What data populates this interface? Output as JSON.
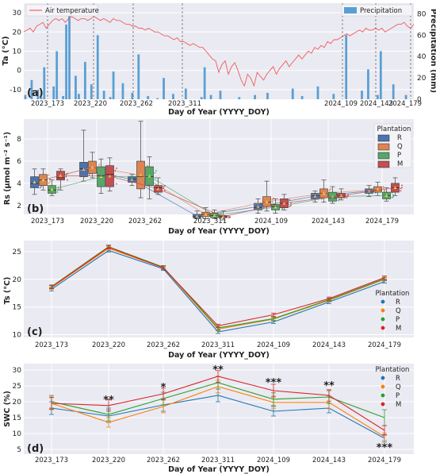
{
  "chart_data": [
    {
      "panel_label": "(a)",
      "type": "line+bar",
      "xlabel": "Day of Year (YYYY_DOY)",
      "ylabel_left": "Ta (°C)",
      "ylabel_right": "Precipitation (mm)",
      "ylim_left": [
        -15,
        35
      ],
      "ylim_right": [
        0,
        90
      ],
      "yticks_left": [
        -10,
        0,
        10,
        20,
        30
      ],
      "yticks_right": [
        0,
        20,
        40,
        60,
        80
      ],
      "grid": true,
      "legend": [
        "top-left: Air temperature",
        "top-right: Precipitation"
      ],
      "series": [
        {
          "name": "Air temperature",
          "color": "#f25c5c",
          "type": "line",
          "values": [
            20,
            21,
            22,
            20,
            23,
            24,
            25,
            22,
            24,
            26,
            27,
            26,
            27,
            25,
            27,
            28,
            27,
            26,
            27,
            27,
            26,
            27,
            28,
            27,
            26,
            27,
            26,
            25,
            27,
            26,
            26,
            25,
            24,
            24,
            23,
            23,
            22,
            22,
            21,
            22,
            21,
            20,
            20,
            19,
            18,
            18,
            17,
            16,
            17,
            15,
            15,
            14,
            13,
            14,
            13,
            12,
            12,
            10,
            8,
            6,
            5,
            -1,
            3,
            5,
            -2,
            2,
            4,
            0,
            -5,
            -8,
            -2,
            -4,
            -8,
            -1,
            -3,
            -5,
            -2,
            0,
            2,
            -2,
            1,
            3,
            5,
            2,
            4,
            6,
            8,
            6,
            8,
            10,
            9,
            12,
            11,
            13,
            12,
            15,
            14,
            16,
            16,
            17,
            18,
            19,
            18,
            19,
            20,
            21,
            20,
            22,
            21,
            21,
            22,
            21,
            22,
            20,
            21,
            22,
            23,
            24,
            24,
            25,
            23,
            22,
            24
          ]
        },
        {
          "name": "Precipitation",
          "color": "#5a9fd4",
          "type": "bar",
          "values": [
            4,
            0,
            18,
            0,
            9,
            2,
            30,
            0,
            0,
            12,
            45,
            0,
            3,
            70,
            88,
            0,
            22,
            5,
            0,
            35,
            0,
            14,
            0,
            60,
            0,
            8,
            0,
            2,
            26,
            0,
            0,
            15,
            0,
            0,
            6,
            0,
            42,
            0,
            0,
            3,
            0,
            0,
            1,
            0,
            20,
            0,
            0,
            5,
            0,
            0,
            0,
            10,
            0,
            0,
            0,
            0,
            2,
            30,
            0,
            4,
            0,
            0,
            8,
            0,
            0,
            0,
            0,
            0,
            2,
            0,
            0,
            0,
            0,
            4,
            0,
            0,
            0,
            6,
            0,
            0,
            0,
            0,
            0,
            0,
            0,
            10,
            0,
            0,
            3,
            0,
            0,
            0,
            0,
            12,
            0,
            0,
            0,
            0,
            5,
            0,
            0,
            0,
            60,
            0,
            0,
            0,
            0,
            8,
            0,
            28,
            0,
            0,
            4,
            45,
            0,
            0,
            0,
            14,
            0,
            0,
            0,
            4,
            0,
            0
          ]
        }
      ],
      "vlines": [
        "2023_173",
        "2023_220",
        "2023_262",
        "2023_311",
        "2024_109",
        "2024_143",
        "2024_179"
      ]
    },
    {
      "panel_label": "(b)",
      "type": "boxplot",
      "xlabel": "Day of Year (YYYY_DOY)",
      "ylabel": "Rs (μmol m⁻² s⁻¹)",
      "ylim": [
        1.2,
        9.8
      ],
      "yticks": [
        2,
        4,
        6,
        8
      ],
      "categories": [
        "2023_173",
        "2023_220",
        "2023_262",
        "2023_311",
        "2024_109",
        "2024_143",
        "2024_179"
      ],
      "legend_title": "Plantation",
      "legend": [
        "R",
        "Q",
        "P",
        "M"
      ],
      "series": [
        {
          "name": "R",
          "color": "#4c72b0",
          "boxes": [
            [
              3.0,
              3.6,
              4.0,
              4.6,
              5.3
            ],
            [
              4.2,
              4.6,
              5.3,
              5.9,
              8.8
            ],
            [
              3.8,
              4.1,
              4.4,
              4.6,
              4.8
            ],
            [
              0.8,
              0.9,
              1.0,
              1.2,
              1.5
            ],
            [
              1.3,
              1.6,
              1.8,
              2.2,
              2.6
            ],
            [
              2.3,
              2.6,
              2.9,
              3.1,
              3.3
            ],
            [
              2.8,
              3.1,
              3.3,
              3.5,
              3.8
            ]
          ]
        },
        {
          "name": "Q",
          "color": "#dd8452",
          "boxes": [
            [
              3.4,
              3.8,
              4.3,
              4.8,
              5.3
            ],
            [
              4.5,
              4.9,
              5.4,
              6.0,
              6.8
            ],
            [
              2.7,
              3.5,
              4.6,
              6.0,
              9.6
            ],
            [
              0.8,
              1.0,
              1.2,
              1.4,
              1.8
            ],
            [
              1.5,
              1.9,
              2.3,
              2.8,
              4.2
            ],
            [
              2.3,
              2.7,
              3.1,
              3.5,
              4.3
            ],
            [
              2.9,
              3.2,
              3.4,
              3.7,
              4.1
            ]
          ]
        },
        {
          "name": "P",
          "color": "#55a868",
          "boxes": [
            [
              2.9,
              3.1,
              3.4,
              3.8,
              4.3
            ],
            [
              3.1,
              3.7,
              4.7,
              5.5,
              6.2
            ],
            [
              2.6,
              3.8,
              4.6,
              5.5,
              6.4
            ],
            [
              0.8,
              0.9,
              1.1,
              1.3,
              1.6
            ],
            [
              1.3,
              1.6,
              1.9,
              2.1,
              2.6
            ],
            [
              2.2,
              2.4,
              2.7,
              3.2,
              3.7
            ],
            [
              2.4,
              2.6,
              2.9,
              3.2,
              3.6
            ]
          ]
        },
        {
          "name": "M",
          "color": "#c44e52",
          "boxes": [
            [
              3.4,
              4.3,
              4.5,
              5.1,
              5.3
            ],
            [
              3.3,
              3.7,
              4.8,
              5.6,
              6.3
            ],
            [
              3.0,
              3.2,
              3.6,
              3.8,
              4.5
            ],
            [
              0.7,
              0.9,
              1.0,
              1.1,
              1.5
            ],
            [
              1.6,
              1.8,
              2.2,
              2.6,
              3.0
            ],
            [
              2.5,
              2.7,
              2.9,
              3.1,
              3.5
            ],
            [
              2.9,
              3.2,
              3.6,
              4.0,
              4.5
            ]
          ]
        }
      ]
    },
    {
      "panel_label": "(c)",
      "type": "line",
      "xlabel": "Day of Year (YYYY_DOY)",
      "ylabel": "Ts (°C)",
      "ylim": [
        9.5,
        27
      ],
      "yticks": [
        10,
        15,
        20,
        25
      ],
      "categories": [
        "2023_173",
        "2023_220",
        "2023_262",
        "2023_311",
        "2024_109",
        "2024_143",
        "2024_179"
      ],
      "legend_title": "Plantation",
      "legend": [
        "R",
        "Q",
        "P",
        "M"
      ],
      "series": [
        {
          "name": "R",
          "color": "#1f77b4",
          "values": [
            18.2,
            25.2,
            21.9,
            10.5,
            12.3,
            15.9,
            19.6
          ],
          "err": [
            0.3,
            0.3,
            0.3,
            0.3,
            0.3,
            0.3,
            0.3
          ]
        },
        {
          "name": "Q",
          "color": "#ff7f0e",
          "values": [
            18.5,
            25.6,
            22.1,
            11.0,
            12.8,
            16.2,
            20.0
          ],
          "err": [
            0.3,
            0.3,
            0.3,
            0.3,
            0.3,
            0.3,
            0.3
          ]
        },
        {
          "name": "P",
          "color": "#2ca02c",
          "values": [
            18.7,
            25.9,
            22.2,
            11.2,
            12.9,
            16.3,
            20.1
          ],
          "err": [
            0.3,
            0.3,
            0.3,
            0.3,
            0.3,
            0.3,
            0.3
          ]
        },
        {
          "name": "M",
          "color": "#d62728",
          "values": [
            18.6,
            25.8,
            22.1,
            11.6,
            13.6,
            16.5,
            20.3
          ],
          "err": [
            0.3,
            0.3,
            0.3,
            0.3,
            0.3,
            0.3,
            0.3
          ]
        }
      ]
    },
    {
      "panel_label": "(d)",
      "type": "line",
      "xlabel": "Day of Year (YYYY_DOY)",
      "ylabel": "SWC (%)",
      "ylim": [
        3.5,
        32
      ],
      "yticks": [
        5,
        10,
        15,
        20,
        25,
        30
      ],
      "categories": [
        "2023_173",
        "2023_220",
        "2023_262",
        "2023_311",
        "2024_109",
        "2024_143",
        "2024_179"
      ],
      "legend_title": "Plantation",
      "legend": [
        "R",
        "Q",
        "P",
        "M"
      ],
      "annotations": [
        {
          "category": "2023_220",
          "text": "**",
          "y": 20.5
        },
        {
          "category": "2023_262",
          "text": "*",
          "y": 24.5
        },
        {
          "category": "2023_311",
          "text": "**",
          "y": 30
        },
        {
          "category": "2024_109",
          "text": "***",
          "y": 26
        },
        {
          "category": "2024_143",
          "text": "**",
          "y": 25
        },
        {
          "category": "2024_179",
          "text": "***",
          "y": 5.5
        }
      ],
      "series": [
        {
          "name": "R",
          "color": "#1f77b4",
          "values": [
            18.0,
            15.5,
            19.0,
            22.0,
            17.0,
            18.0,
            8.5
          ],
          "err": [
            2.0,
            2.0,
            2.0,
            2.0,
            1.5,
            1.5,
            1.2
          ]
        },
        {
          "name": "Q",
          "color": "#ff7f0e",
          "values": [
            19.5,
            13.5,
            18.5,
            24.8,
            19.8,
            19.8,
            9.0
          ],
          "err": [
            2.0,
            1.5,
            2.0,
            2.0,
            2.0,
            2.0,
            1.2
          ]
        },
        {
          "name": "P",
          "color": "#2ca02c",
          "values": [
            20.0,
            16.0,
            21.0,
            26.0,
            20.8,
            21.5,
            15.0
          ],
          "err": [
            2.0,
            2.0,
            2.0,
            2.0,
            2.0,
            2.0,
            2.5
          ]
        },
        {
          "name": "M",
          "color": "#d62728",
          "values": [
            19.5,
            18.8,
            22.5,
            28.0,
            23.5,
            22.0,
            11.0
          ],
          "err": [
            1.8,
            1.8,
            1.8,
            1.8,
            2.0,
            1.8,
            1.5
          ]
        }
      ]
    }
  ]
}
